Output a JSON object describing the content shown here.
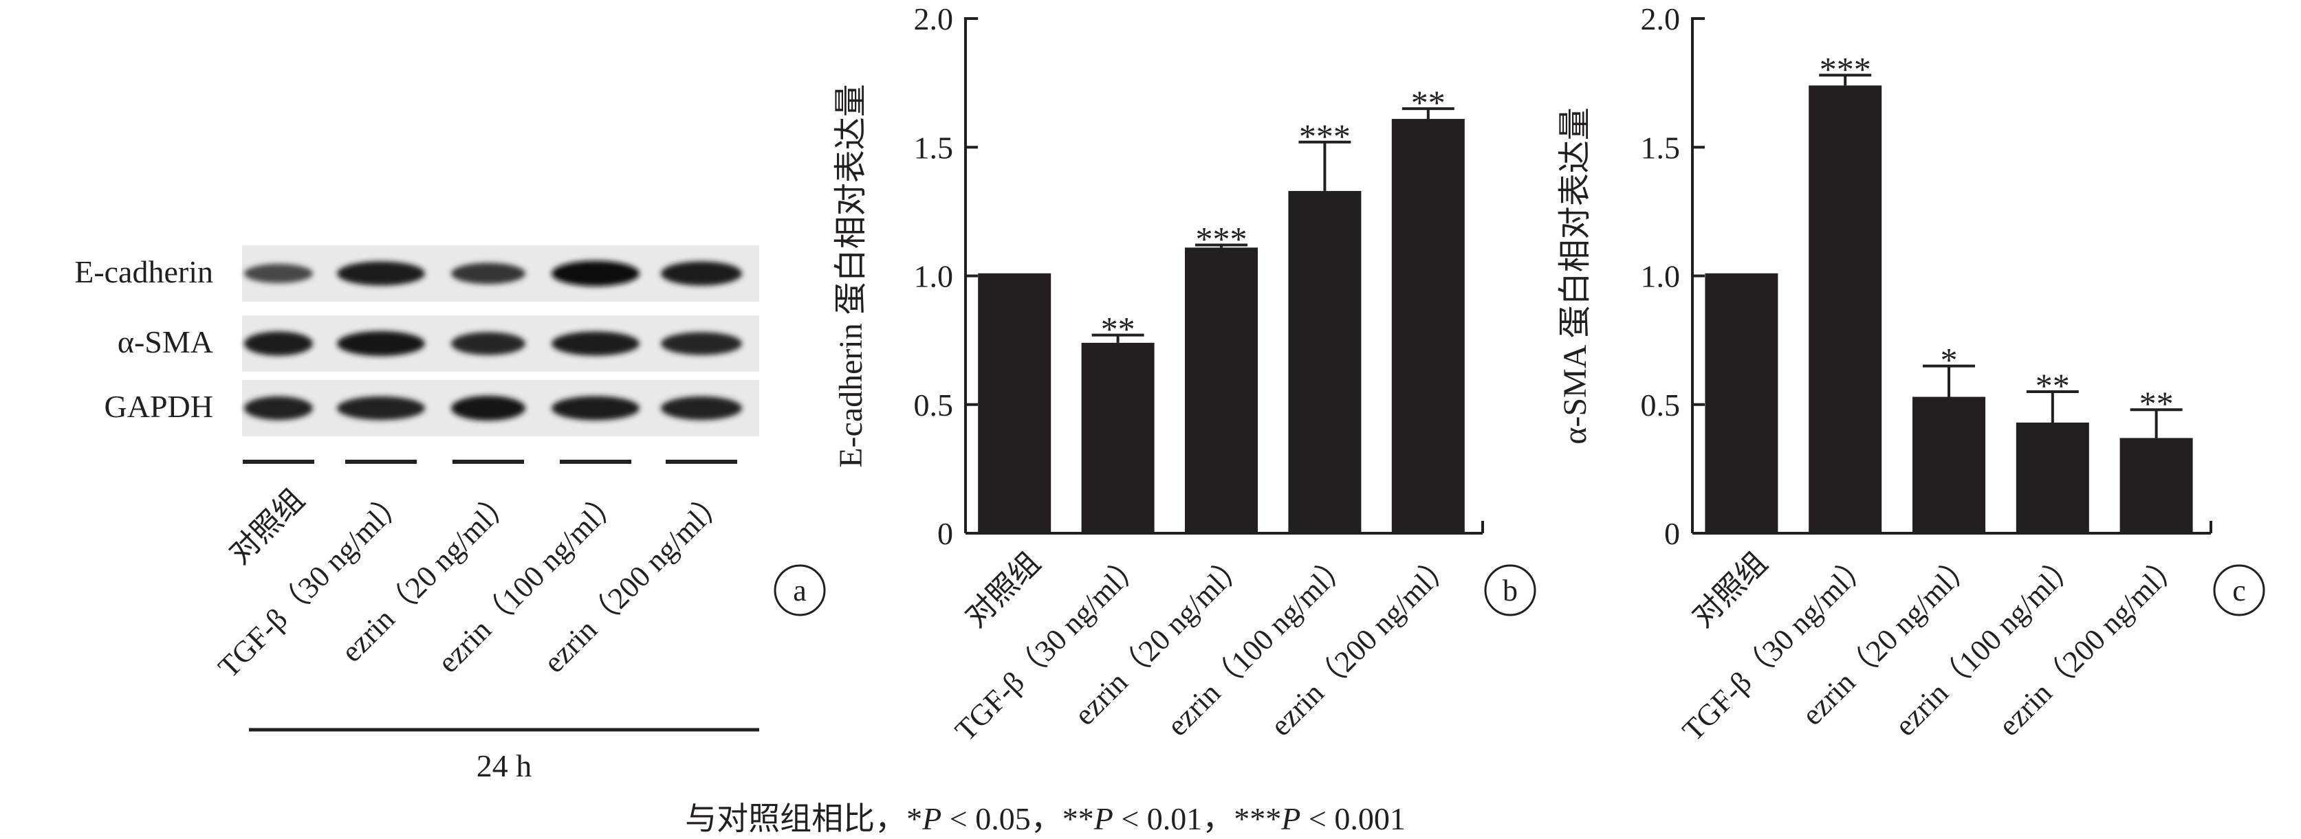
{
  "panel_a": {
    "rows": [
      "E-cadherin",
      "α-SMA",
      "GAPDH"
    ],
    "lanes": [
      "对照组",
      "TGF-β（30 ng/ml）",
      "ezrin（20 ng/ml）",
      "ezrin（100 ng/ml）",
      "ezrin（200 ng/ml）"
    ],
    "time_label": "24 h",
    "band_intensity": {
      "E-cadherin": [
        0.45,
        0.85,
        0.6,
        0.95,
        0.85
      ],
      "α-SMA": [
        0.85,
        0.9,
        0.75,
        0.85,
        0.75
      ],
      "GAPDH": [
        0.8,
        0.8,
        0.9,
        0.85,
        0.8
      ]
    },
    "panel_letter": "a"
  },
  "chart_data": [
    {
      "type": "bar",
      "panel_letter": "b",
      "ylabel": "E-cadherin 蛋白相对表达量",
      "categories": [
        "对照组",
        "TGF-β（30 ng/ml）",
        "ezrin（20 ng/ml）",
        "ezrin（100 ng/ml）",
        "ezrin（200 ng/ml）"
      ],
      "values": [
        1.01,
        0.74,
        1.11,
        1.33,
        1.61
      ],
      "errors": [
        0,
        0.03,
        0.01,
        0.19,
        0.04
      ],
      "significance": [
        "",
        "**",
        "***",
        "***",
        "**"
      ],
      "ylim": [
        0,
        2.0
      ],
      "yticks": [
        "0",
        "0.5",
        "1.0",
        "1.5",
        "2.0"
      ],
      "bar_color": "#231f20",
      "grid": false
    },
    {
      "type": "bar",
      "panel_letter": "c",
      "ylabel": "α-SMA 蛋白相对表达量",
      "categories": [
        "对照组",
        "TGF-β（30 ng/ml）",
        "ezrin（20 ng/ml）",
        "ezrin（100 ng/ml）",
        "ezrin（200 ng/ml）"
      ],
      "values": [
        1.01,
        1.74,
        0.53,
        0.43,
        0.37
      ],
      "errors": [
        0,
        0.04,
        0.12,
        0.12,
        0.11
      ],
      "significance": [
        "",
        "***",
        "*",
        "**",
        "**"
      ],
      "ylim": [
        0,
        2.0
      ],
      "yticks": [
        "0",
        "0.5",
        "1.0",
        "1.5",
        "2.0"
      ],
      "bar_color": "#231f20",
      "grid": false
    }
  ],
  "footnote": {
    "prefix": "与对照组相比，*",
    "p1": "P",
    "t1": " < 0.05，**",
    "p2": "P",
    "t2": " < 0.01，***",
    "p3": "P",
    "t3": " < 0.001"
  }
}
